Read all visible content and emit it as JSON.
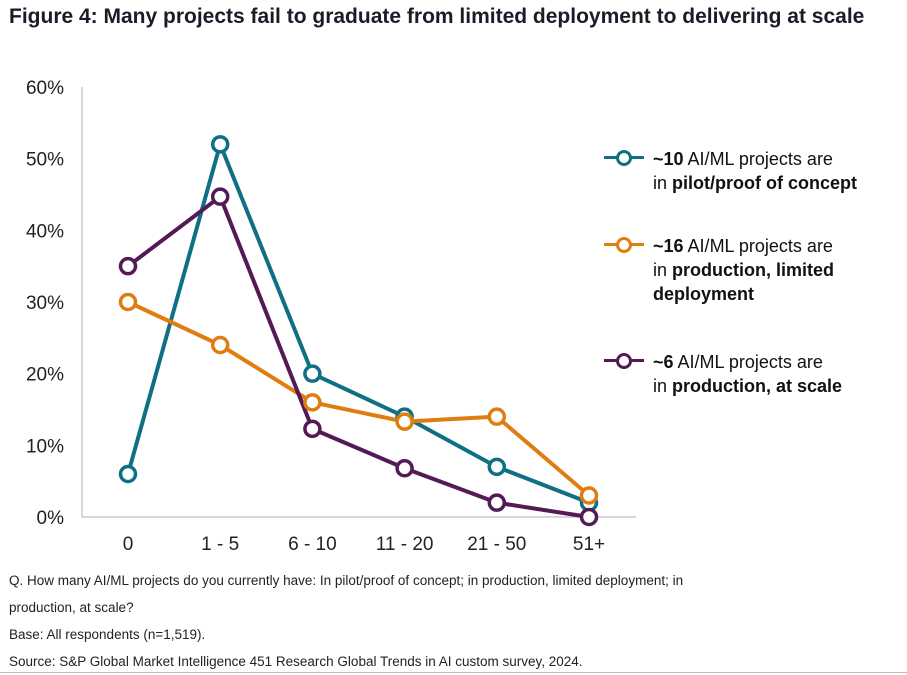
{
  "title": "Figure 4: Many projects fail to graduate from limited deployment to delivering at scale",
  "chart_data": {
    "type": "line",
    "categories": [
      "0",
      "1 - 5",
      "6 - 10",
      "11 - 20",
      "21 - 50",
      "51+"
    ],
    "ylim": [
      0,
      60
    ],
    "yticks": [
      0,
      10,
      20,
      30,
      40,
      50,
      60
    ],
    "ytick_labels": [
      "0%",
      "10%",
      "20%",
      "30%",
      "40%",
      "50%",
      "60%"
    ],
    "grid": false,
    "legend_position": "right",
    "series": [
      {
        "name": "~10 AI/ML projects are in pilot/proof of concept",
        "legend_bold_lead": "~10",
        "legend_line1_rest": " AI/ML projects are",
        "legend_line2_plain": "in ",
        "legend_line2_bold": "pilot/proof of concept",
        "color": "#0f7085",
        "values": [
          6,
          52,
          20,
          14,
          7,
          2
        ]
      },
      {
        "name": "~16 AI/ML projects are in production, limited deployment",
        "legend_bold_lead": "~16",
        "legend_line1_rest": " AI/ML projects are",
        "legend_line2_plain": "in ",
        "legend_line2_bold": "production, limited deployment",
        "color": "#e07d10",
        "values": [
          30,
          24,
          16,
          13.3,
          14,
          3
        ]
      },
      {
        "name": "~6 AI/ML projects are in production, at scale",
        "legend_bold_lead": "~6",
        "legend_line1_rest": " AI/ML projects are",
        "legend_line2_plain": "in ",
        "legend_line2_bold": "production, at scale",
        "color": "#531a55",
        "values": [
          35,
          44.7,
          12.3,
          6.8,
          2,
          0
        ]
      }
    ]
  },
  "notes": {
    "question_line1": "Q. How many AI/ML projects do you currently have: In pilot/proof of concept; in production, limited deployment; in",
    "question_line2": "production, at scale?",
    "base": "Base: All respondents (n=1,519).",
    "source": "Source: S&P Global Market Intelligence 451 Research Global Trends in AI custom survey, 2024."
  }
}
